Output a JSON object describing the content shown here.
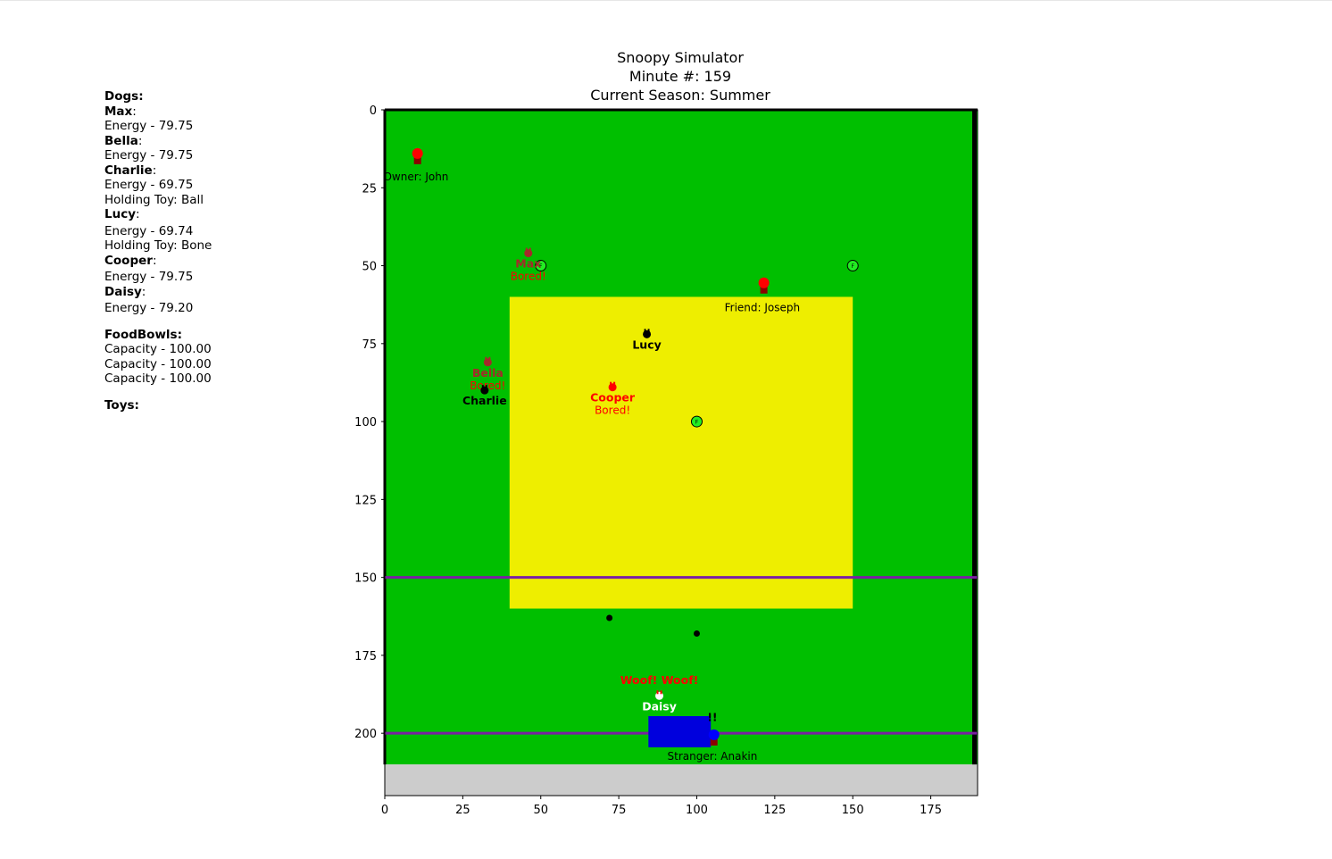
{
  "title": {
    "line1": "Snoopy Simulator",
    "line2": "Minute #: 159",
    "line3": "Current Season: Summer"
  },
  "sidebar": {
    "dogs_header": "Dogs",
    "dogs": [
      {
        "name": "Max",
        "energy": "Energy - 79.75",
        "toy": ""
      },
      {
        "name": "Bella",
        "energy": "Energy - 79.75",
        "toy": ""
      },
      {
        "name": "Charlie",
        "energy": "Energy - 69.75",
        "toy": "Holding Toy: Ball"
      },
      {
        "name": "Lucy",
        "energy": "Energy - 69.74",
        "toy": "Holding Toy: Bone"
      },
      {
        "name": "Cooper",
        "energy": "Energy - 79.75",
        "toy": ""
      },
      {
        "name": "Daisy",
        "energy": "Energy - 79.20",
        "toy": ""
      }
    ],
    "foodbowls_header": "FoodBowls",
    "foodbowls": [
      "Capacity - 100.00",
      "Capacity - 100.00",
      "Capacity - 100.00"
    ],
    "toys_header": "Toys"
  },
  "map": {
    "x_range": [
      0,
      190
    ],
    "y_range": [
      0,
      220
    ],
    "x_ticks": [
      0,
      25,
      50,
      75,
      100,
      125,
      150,
      175
    ],
    "y_ticks": [
      0,
      25,
      50,
      75,
      100,
      125,
      150,
      175,
      200
    ],
    "colors": {
      "grass": "#00bf00",
      "sand": "#eeee00",
      "road": "#cccccc",
      "fence": "#7a1fa2",
      "car": "#0000dd",
      "border": "#000000"
    },
    "sand_zone": {
      "x0": 40,
      "x1": 150,
      "y0": 60,
      "y1": 160
    },
    "road": {
      "y0": 210,
      "y1": 220
    },
    "fences_y": [
      150,
      200
    ],
    "car": {
      "x0": 84.5,
      "x1": 104.5,
      "y0": 194.5,
      "y1": 204.5
    },
    "people": [
      {
        "label": "Owner: John",
        "x": 10.5,
        "y": 14,
        "color": "#ff0000",
        "label_x": 10,
        "label_y": 20
      },
      {
        "label": "Friend: Joseph",
        "x": 121.5,
        "y": 55.5,
        "color": "#ff0000",
        "label_x": 121,
        "label_y": 62
      },
      {
        "label": "Stranger: Anakin",
        "x": 105.5,
        "y": 200.5,
        "color": "#0000ff",
        "label_x": 105,
        "label_y": 206
      }
    ],
    "food_bowls": [
      {
        "x": 50,
        "y": 50,
        "label": "F"
      },
      {
        "x": 150,
        "y": 50,
        "label": "F"
      },
      {
        "x": 100,
        "y": 100,
        "label": "F"
      }
    ],
    "toys": [
      {
        "x": 72,
        "y": 163
      },
      {
        "x": 100,
        "y": 168
      }
    ],
    "dogs": [
      {
        "name": "Max",
        "x": 46,
        "y": 46,
        "color": "#a52a2a",
        "status": "Bored!",
        "status_color": "#ff0000"
      },
      {
        "name": "Bella",
        "x": 33,
        "y": 81,
        "color": "#a52a2a",
        "status": "Bored!",
        "status_color": "#ff0000"
      },
      {
        "name": "Charlie",
        "x": 32,
        "y": 90,
        "color": "#000000",
        "status": "",
        "status_color": ""
      },
      {
        "name": "Lucy",
        "x": 84,
        "y": 72,
        "color": "#000000",
        "status": "",
        "status_color": ""
      },
      {
        "name": "Cooper",
        "x": 73,
        "y": 89,
        "color": "#ff0000",
        "status": "Bored!",
        "status_color": "#ff0000"
      },
      {
        "name": "Daisy",
        "x": 88,
        "y": 188,
        "color": "#ffffff",
        "status": "",
        "status_color": ""
      }
    ],
    "speech": [
      {
        "text": "Woof! Woof!",
        "x": 88,
        "y": 183,
        "color": "#ff0000"
      },
      {
        "text": "!!",
        "x": 105,
        "y": 195,
        "color": "#000000"
      }
    ]
  }
}
